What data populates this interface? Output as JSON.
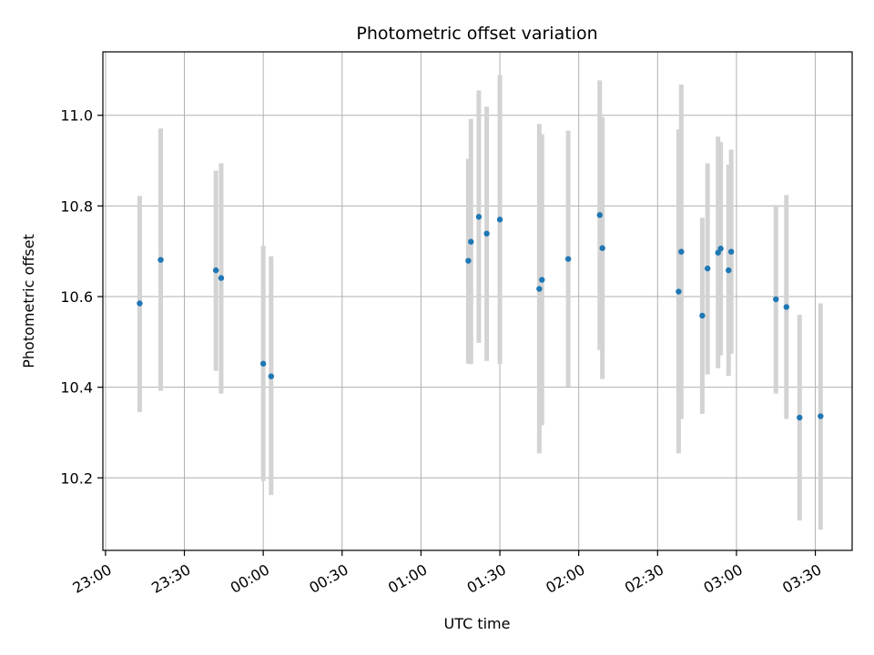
{
  "chart_data": {
    "type": "scatter",
    "title": "Photometric offset variation",
    "xlabel": "UTC time",
    "ylabel": "Photometric offset",
    "xlim": [
      "22:59",
      "03:44"
    ],
    "ylim": [
      10.04,
      11.14
    ],
    "x_ticks": [
      "23:00",
      "23:30",
      "00:00",
      "00:30",
      "01:00",
      "01:30",
      "02:00",
      "02:30",
      "03:00",
      "03:30"
    ],
    "y_ticks": [
      "10.2",
      "10.4",
      "10.6",
      "10.8",
      "11.0"
    ],
    "grid": true,
    "marker_color": "#1f77b4",
    "errorbar_color": "#d3d3d3",
    "points": [
      {
        "t": "23:13",
        "y": 10.585,
        "lo": 10.345,
        "hi": 10.822
      },
      {
        "t": "23:21",
        "y": 10.681,
        "lo": 10.392,
        "hi": 10.971
      },
      {
        "t": "23:42",
        "y": 10.658,
        "lo": 10.436,
        "hi": 10.878
      },
      {
        "t": "23:44",
        "y": 10.641,
        "lo": 10.386,
        "hi": 10.894
      },
      {
        "t": "00:00",
        "y": 10.452,
        "lo": 10.193,
        "hi": 10.712
      },
      {
        "t": "00:03",
        "y": 10.424,
        "lo": 10.162,
        "hi": 10.689
      },
      {
        "t": "01:18",
        "y": 10.679,
        "lo": 10.452,
        "hi": 10.904
      },
      {
        "t": "01:19",
        "y": 10.721,
        "lo": 10.451,
        "hi": 10.992
      },
      {
        "t": "01:22",
        "y": 10.776,
        "lo": 10.498,
        "hi": 11.055
      },
      {
        "t": "01:25",
        "y": 10.739,
        "lo": 10.458,
        "hi": 11.019
      },
      {
        "t": "01:30",
        "y": 10.77,
        "lo": 10.451,
        "hi": 11.089
      },
      {
        "t": "01:45",
        "y": 10.617,
        "lo": 10.254,
        "hi": 10.981
      },
      {
        "t": "01:46",
        "y": 10.637,
        "lo": 10.316,
        "hi": 10.958
      },
      {
        "t": "01:56",
        "y": 10.683,
        "lo": 10.401,
        "hi": 10.966
      },
      {
        "t": "02:08",
        "y": 10.78,
        "lo": 10.482,
        "hi": 11.077
      },
      {
        "t": "02:09",
        "y": 10.707,
        "lo": 10.418,
        "hi": 10.996
      },
      {
        "t": "02:38",
        "y": 10.611,
        "lo": 10.254,
        "hi": 10.969
      },
      {
        "t": "02:39",
        "y": 10.699,
        "lo": 10.33,
        "hi": 11.068
      },
      {
        "t": "02:47",
        "y": 10.558,
        "lo": 10.341,
        "hi": 10.774
      },
      {
        "t": "02:49",
        "y": 10.662,
        "lo": 10.428,
        "hi": 10.894
      },
      {
        "t": "02:53",
        "y": 10.697,
        "lo": 10.442,
        "hi": 10.953
      },
      {
        "t": "02:54",
        "y": 10.706,
        "lo": 10.47,
        "hi": 10.941
      },
      {
        "t": "02:57",
        "y": 10.658,
        "lo": 10.425,
        "hi": 10.891
      },
      {
        "t": "02:58",
        "y": 10.699,
        "lo": 10.474,
        "hi": 10.924
      },
      {
        "t": "03:15",
        "y": 10.594,
        "lo": 10.386,
        "hi": 10.802
      },
      {
        "t": "03:19",
        "y": 10.577,
        "lo": 10.33,
        "hi": 10.824
      },
      {
        "t": "03:24",
        "y": 10.333,
        "lo": 10.106,
        "hi": 10.56
      },
      {
        "t": "03:32",
        "y": 10.336,
        "lo": 10.086,
        "hi": 10.585
      }
    ]
  }
}
